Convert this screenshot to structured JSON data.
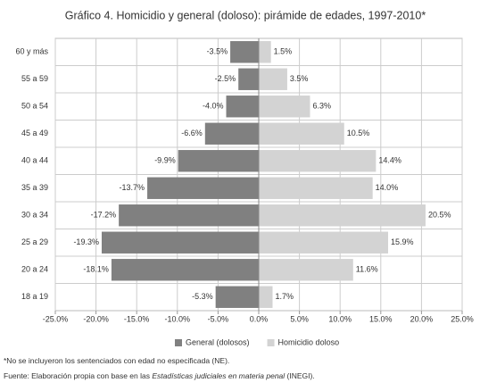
{
  "chart_data": {
    "type": "bar",
    "title": "Gráfico 4. Homicidio y general (doloso): pirámide de edades, 1997-2010*",
    "categories": [
      "60 y más",
      "55 a 59",
      "50 a 54",
      "45 a 49",
      "40 a 44",
      "35 a 39",
      "30 a 34",
      "25 a 29",
      "20 a 24",
      "18 a 19"
    ],
    "series": [
      {
        "name": "General (dolosos)",
        "color": "#808080",
        "values": [
          -3.5,
          -2.5,
          -4.0,
          -6.6,
          -9.9,
          -13.7,
          -17.2,
          -19.3,
          -18.1,
          -5.3
        ],
        "value_labels": [
          "-3.5%",
          "-2.5%",
          "-4.0%",
          "-6.6%",
          "-9.9%",
          "-13.7%",
          "-17.2%",
          "-19.3%",
          "-18.1%",
          "-5.3%"
        ]
      },
      {
        "name": "Homicidio doloso",
        "color": "#d3d3d3",
        "values": [
          1.5,
          3.5,
          6.3,
          10.5,
          14.4,
          14.0,
          20.5,
          15.9,
          11.6,
          1.7
        ],
        "value_labels": [
          "1.5%",
          "3.5%",
          "6.3%",
          "10.5%",
          "14.4%",
          "14.0%",
          "20.5%",
          "15.9%",
          "11.6%",
          "1.7%"
        ]
      }
    ],
    "xlim": [
      -25,
      25
    ],
    "xticks": [
      {
        "value": -25,
        "label": "-25.0%"
      },
      {
        "value": -20,
        "label": "-20.0%"
      },
      {
        "value": -15,
        "label": "-15.0%"
      },
      {
        "value": -10,
        "label": "-10.0%"
      },
      {
        "value": -5,
        "label": "-5.0%"
      },
      {
        "value": 0,
        "label": "0.0%"
      },
      {
        "value": 5,
        "label": "5.0%"
      },
      {
        "value": 10,
        "label": "10.0%"
      },
      {
        "value": 15,
        "label": "15.0%"
      },
      {
        "value": 20,
        "label": "20.0%"
      },
      {
        "value": 25,
        "label": "25.0%"
      }
    ],
    "grid": true,
    "legend": "bottom",
    "footnote": "*No se incluyeron los sentenciados con edad no especificada (NE).",
    "source": [
      "Fuente: Elaboración propia con base en las ",
      "Estadísticas judiciales en materia penal",
      " (INEGI)."
    ]
  }
}
